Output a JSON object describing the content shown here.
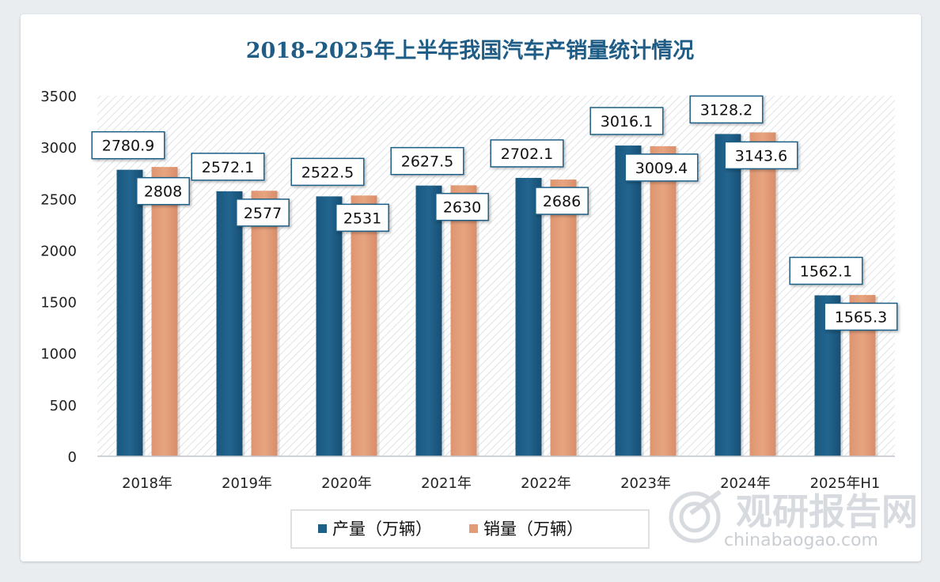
{
  "chart_data": {
    "type": "bar",
    "title": "2018-2025年上半年我国汽车产销量统计情况",
    "categories": [
      "2018年",
      "2019年",
      "2020年",
      "2021年",
      "2022年",
      "2023年",
      "2024年",
      "2025年H1"
    ],
    "series": [
      {
        "name": "产量（万辆）",
        "color": "#1e5f86",
        "values": [
          2780.9,
          2572.1,
          2522.5,
          2627.5,
          2702.1,
          3016.1,
          3128.2,
          1562.1
        ]
      },
      {
        "name": "销量（万辆）",
        "color": "#e39c77",
        "values": [
          2808,
          2577,
          2531,
          2630,
          2686,
          3009.4,
          3143.6,
          1565.3
        ]
      }
    ],
    "ylim": [
      0,
      3500
    ],
    "yticks": [
      0,
      500,
      1000,
      1500,
      2000,
      2500,
      3000,
      3500
    ],
    "legend": "bottom-center",
    "xlabel": "",
    "ylabel": ""
  },
  "watermark": {
    "name": "观研报告网",
    "url": "chinabaogao.com"
  },
  "colors": {
    "title": "#1f5c86",
    "grid_hatch": "#d9dde1",
    "label_border": "#1e5f86"
  }
}
